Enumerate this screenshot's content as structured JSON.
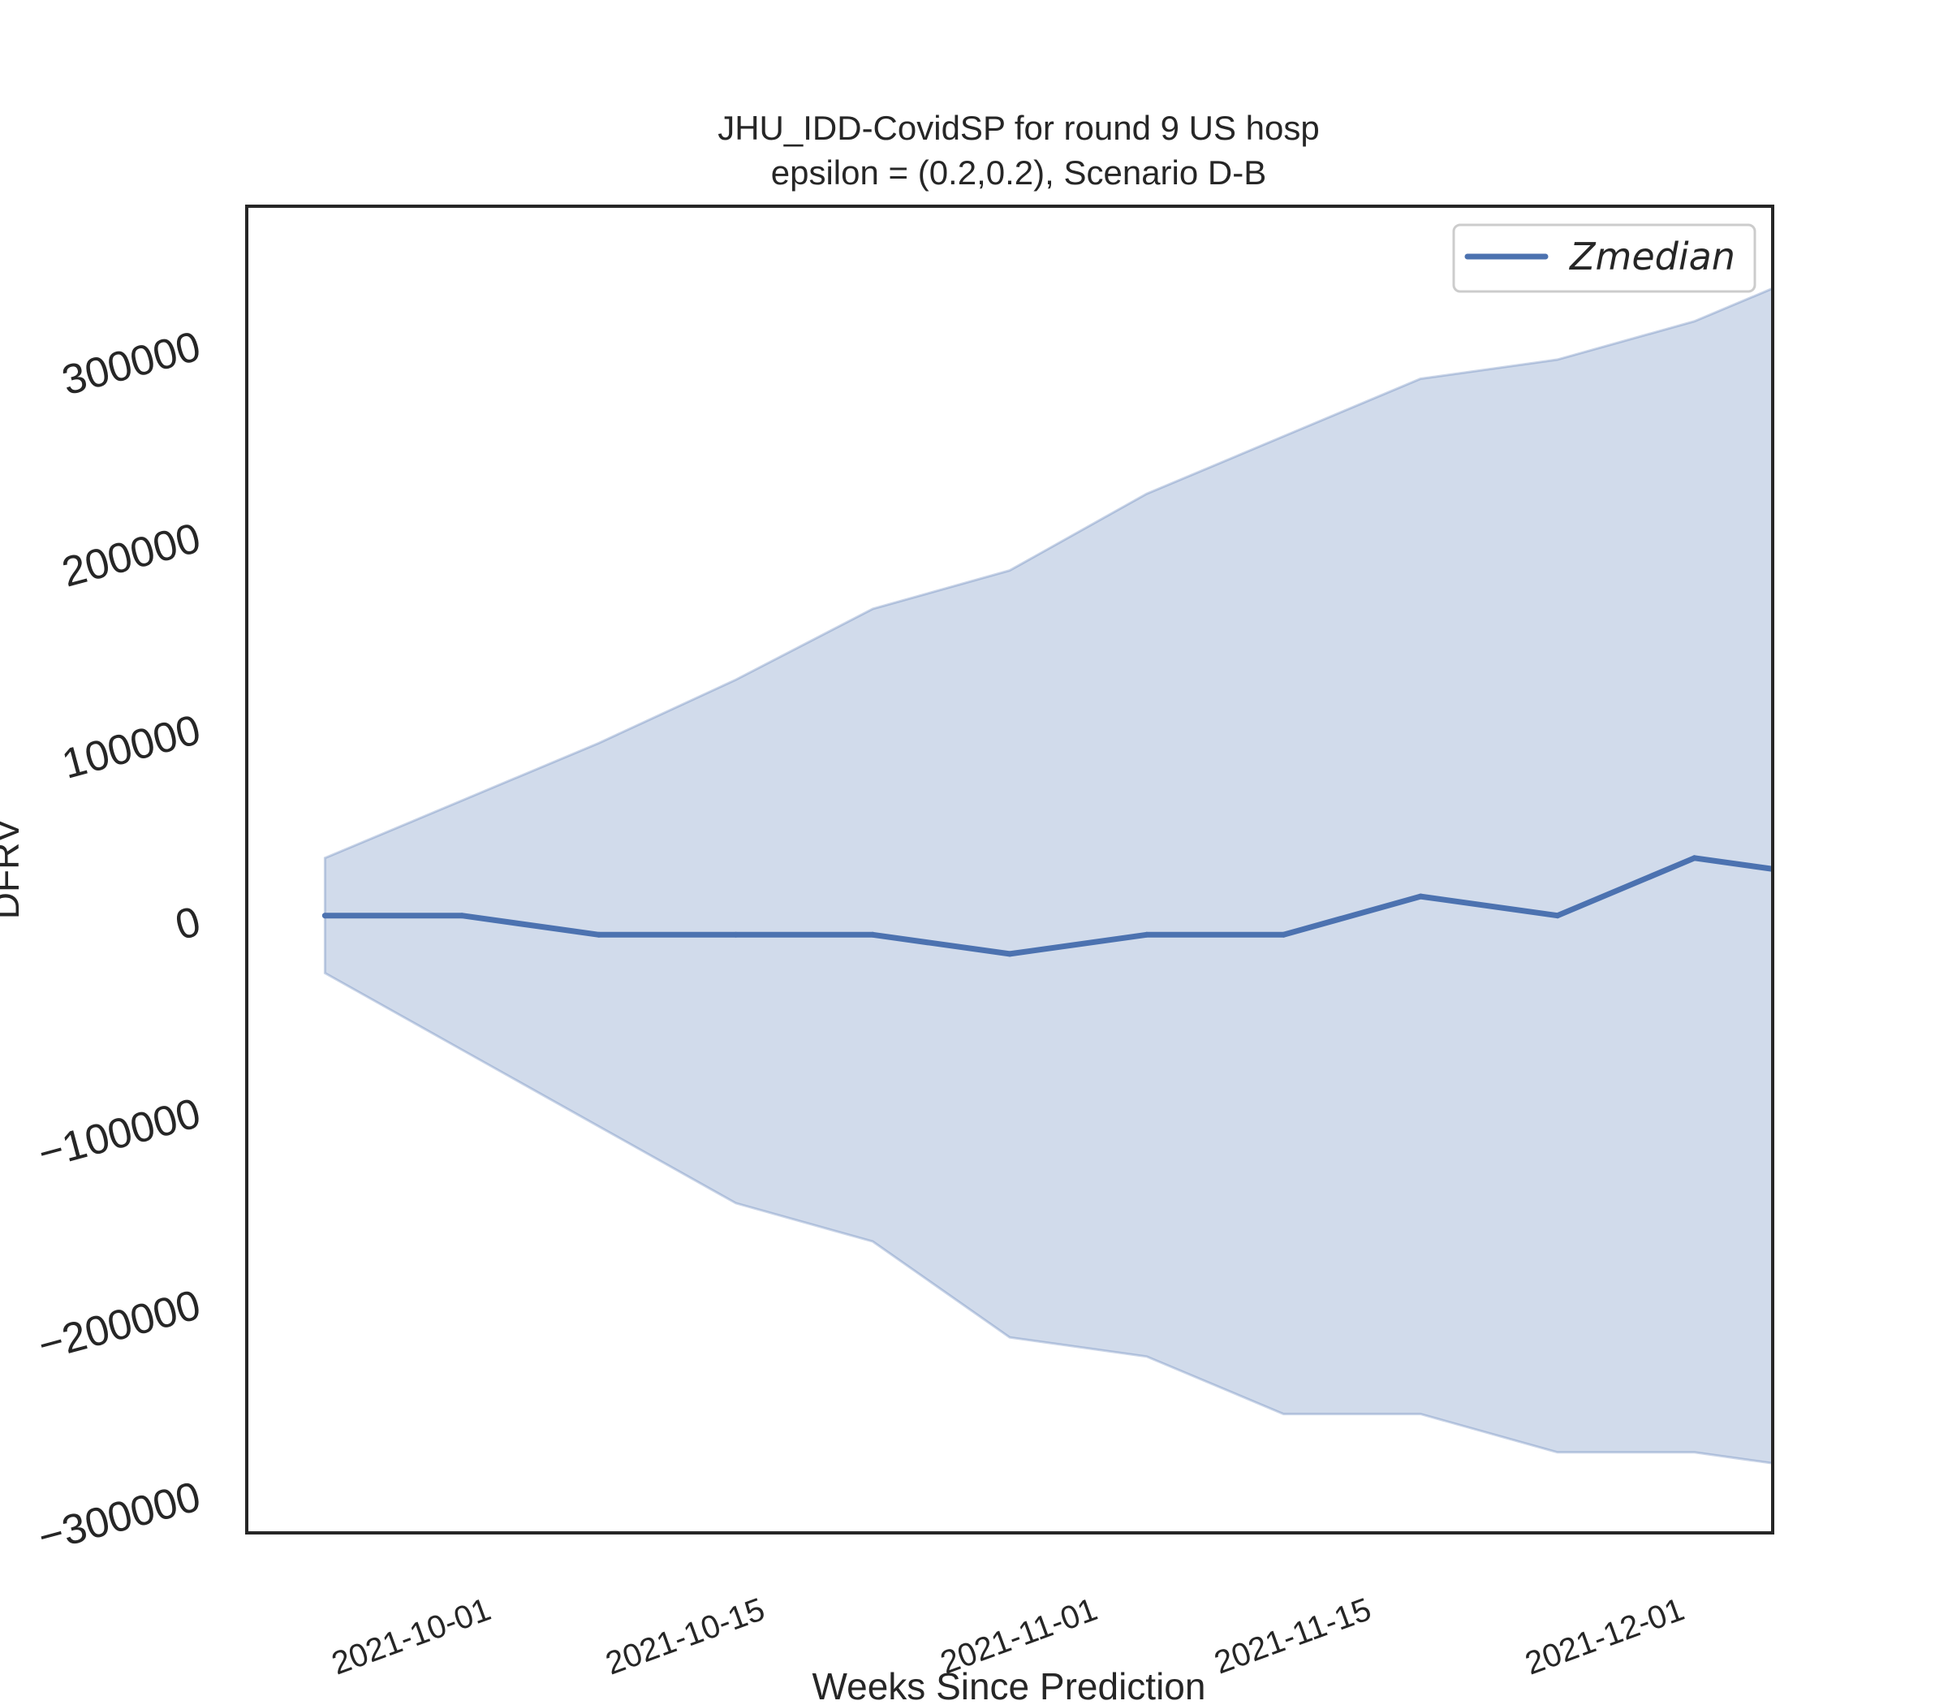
{
  "chart_data": {
    "type": "area",
    "title": "JHU_IDD-CovidSP for round 9 US  hosp",
    "subtitle": "epsilon = (0.2,0.2), Scenario D-B",
    "xlabel": "Weeks Since Prediction",
    "ylabel": "DFRV",
    "xlim": [
      "2021-09-18",
      "2021-12-05"
    ],
    "ylim": [
      -320000,
      372000
    ],
    "x_ticks": [
      "2021-10-01",
      "2021-10-15",
      "2021-11-01",
      "2021-11-15",
      "2021-12-01"
    ],
    "y_ticks": [
      -300000,
      -200000,
      -100000,
      0,
      100000,
      200000,
      300000
    ],
    "y_tick_labels": [
      "−300000",
      "−200000",
      "−100000",
      "0",
      "100000",
      "200000",
      "300000"
    ],
    "grid": false,
    "legend": {
      "position": "top-right",
      "entries": [
        "Zmedian"
      ]
    },
    "x": [
      "2021-09-22",
      "2021-09-29",
      "2021-10-06",
      "2021-10-13",
      "2021-10-20",
      "2021-10-27",
      "2021-11-03",
      "2021-11-10",
      "2021-11-17",
      "2021-11-24",
      "2021-12-01",
      "2021-12-08"
    ],
    "series": [
      {
        "name": "Zmedian",
        "color": "#4c72b0",
        "values": [
          2000,
          2000,
          -8000,
          -8000,
          -8000,
          -18000,
          -8000,
          -8000,
          12000,
          2000,
          32000,
          22000
        ]
      }
    ],
    "band": {
      "color": "#4c72b0",
      "lower": [
        -28000,
        -68000,
        -108000,
        -148000,
        -168000,
        -218000,
        -228000,
        -258000,
        -258000,
        -278000,
        -278000,
        -288000
      ],
      "upper": [
        32000,
        62000,
        92000,
        125000,
        162000,
        182000,
        222000,
        252000,
        282000,
        292000,
        312000,
        342000
      ]
    }
  }
}
